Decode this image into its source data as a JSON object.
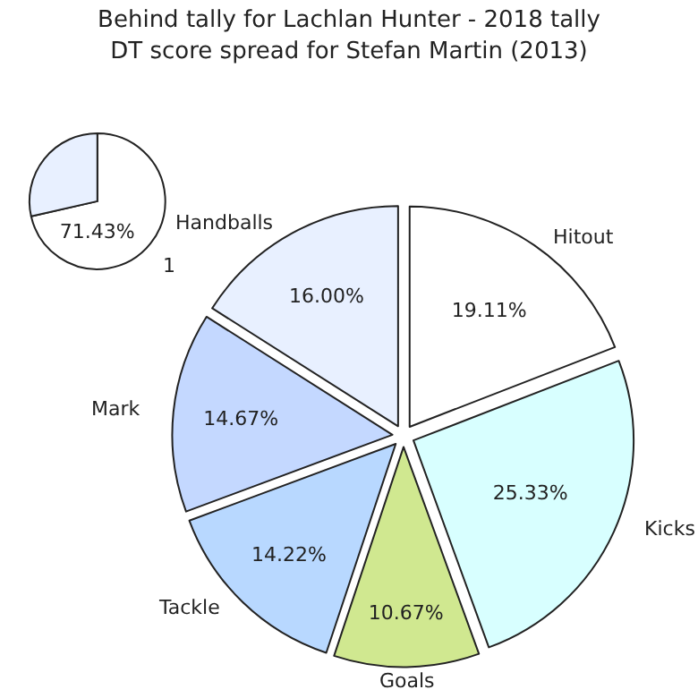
{
  "chart_data": [
    {
      "type": "pie",
      "title": "Behind tally for Lachlan Hunter - 2018 tally",
      "categories": [
        "1",
        null
      ],
      "values": [
        71.43,
        28.57
      ],
      "colors": [
        "#ffffff",
        "#e8f0ff"
      ],
      "value_labels": [
        "71.43%",
        null
      ]
    },
    {
      "type": "pie",
      "title": "DT score spread for Stefan Martin (2013)",
      "categories": [
        "Hitout",
        "Kicks",
        "Goals",
        "Tackle",
        "Mark",
        "Handballs"
      ],
      "values": [
        19.11,
        25.33,
        10.67,
        14.22,
        14.67,
        16.0
      ],
      "colors": [
        "#ffffff",
        "#d8ffff",
        "#d0e890",
        "#b8d8ff",
        "#c4d8ff",
        "#e8f0ff"
      ],
      "value_labels": [
        "19.11%",
        "25.33%",
        "10.67%",
        "14.22%",
        "14.67%",
        "16.00%"
      ]
    }
  ]
}
